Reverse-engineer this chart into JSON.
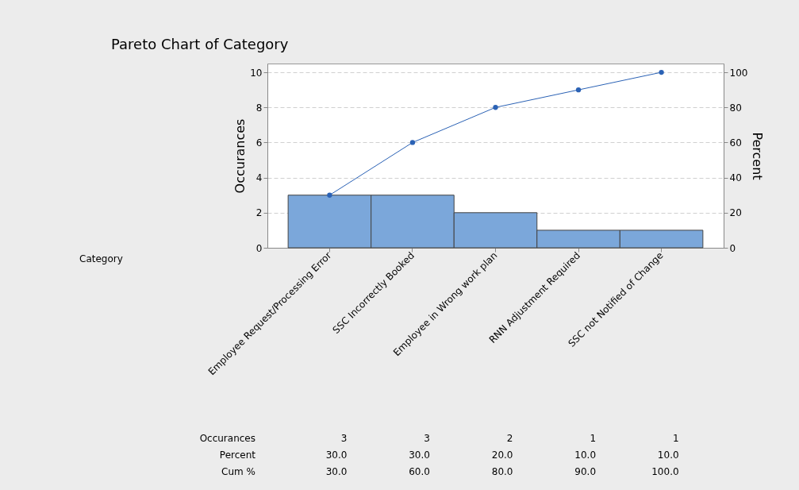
{
  "chart_data": {
    "type": "bar",
    "title": "Pareto Chart of Category",
    "ylabel": "Occurances",
    "y2label": "Percent",
    "categories": [
      "Employee Request/Processing Error",
      "SSC Incorrectly Booked",
      "Employee in Wrong work plan",
      "RNN Adjustment Required",
      "SSC not Notified of Change"
    ],
    "series": [
      {
        "color": "#7ba7da",
        "values": [
          3,
          3,
          2,
          1,
          1
        ],
        "value_labels": [
          "3",
          "3",
          "2",
          "1",
          "1"
        ]
      },
      {
        "type": "line",
        "axis": "y2",
        "color": "#2b62b5",
        "marker": "circle",
        "values": [
          30,
          60,
          80,
          90,
          100
        ],
        "value_labels": [
          "30.0",
          "60.0",
          "80.0",
          "90.0",
          "100.0"
        ]
      }
    ],
    "annotations": [
      "Category",
      "Occurances",
      "Percent",
      "Cum %",
      "30.0",
      "30.0",
      "20.0",
      "10.0",
      "10.0"
    ],
    "ylim": [
      0,
      10.5
    ],
    "yticks": [
      0,
      2,
      4,
      6,
      8,
      10
    ],
    "y2lim": [
      0,
      105
    ],
    "y2ticks": [
      0,
      20,
      40,
      60,
      80,
      100
    ],
    "grid": "y"
  }
}
